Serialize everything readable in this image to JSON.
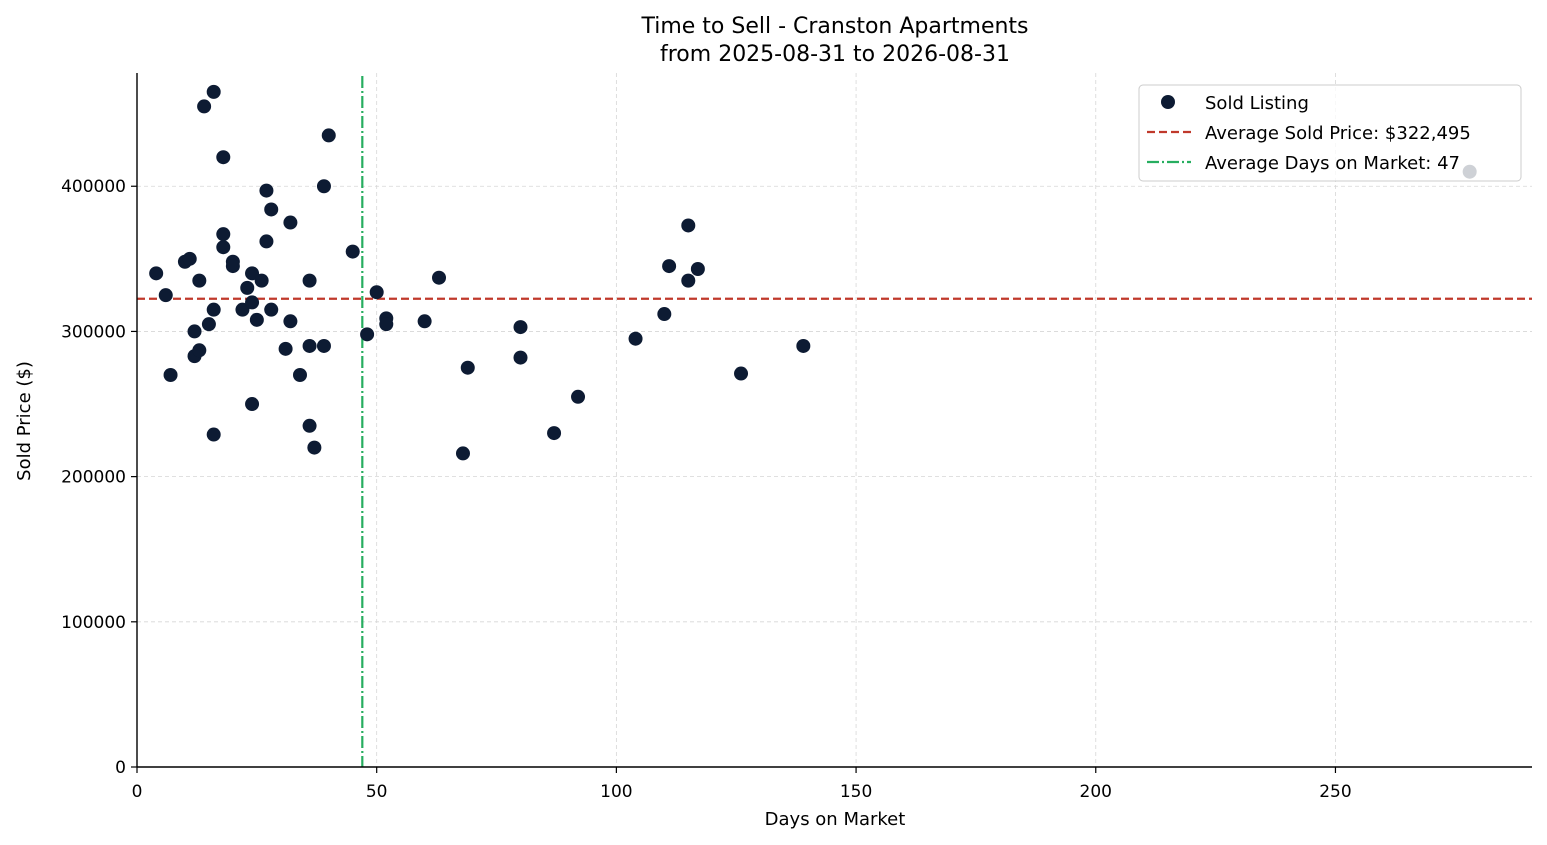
{
  "chart_data": {
    "type": "scatter",
    "title": "Time to Sell - Cranston Apartments",
    "subtitle": "from 2025-08-31 to 2026-08-31",
    "xlabel": "Days on Market",
    "ylabel": "Sold Price ($)",
    "xlim": [
      0,
      291
    ],
    "ylim": [
      0,
      478000
    ],
    "xticks": [
      0,
      50,
      100,
      150,
      200,
      250
    ],
    "yticks": [
      0,
      100000,
      200000,
      300000,
      400000
    ],
    "grid": true,
    "legend_position": "top-right",
    "colors": {
      "points": "#0d1b33",
      "avg_price_line": "#c0392b",
      "avg_days_line": "#27ae60"
    },
    "legend": [
      {
        "label": "Sold Listing",
        "kind": "marker"
      },
      {
        "label": "Average Sold Price: $322,495",
        "kind": "dashed"
      },
      {
        "label": "Average Days on Market: 47",
        "kind": "dashdot"
      }
    ],
    "avg_sold_price": 322495,
    "avg_days_on_market": 47,
    "series": [
      {
        "name": "Sold Listing",
        "points": [
          [
            4,
            340000
          ],
          [
            6,
            325000
          ],
          [
            7,
            270000
          ],
          [
            10,
            348000
          ],
          [
            11,
            350000
          ],
          [
            12,
            300000
          ],
          [
            12,
            283000
          ],
          [
            13,
            335000
          ],
          [
            13,
            287000
          ],
          [
            14,
            455000
          ],
          [
            15,
            305000
          ],
          [
            16,
            465000
          ],
          [
            16,
            315000
          ],
          [
            16,
            229000
          ],
          [
            18,
            420000
          ],
          [
            18,
            367000
          ],
          [
            18,
            358000
          ],
          [
            20,
            348000
          ],
          [
            20,
            345000
          ],
          [
            22,
            315000
          ],
          [
            23,
            330000
          ],
          [
            24,
            340000
          ],
          [
            24,
            320000
          ],
          [
            24,
            250000
          ],
          [
            25,
            308000
          ],
          [
            26,
            335000
          ],
          [
            27,
            397000
          ],
          [
            27,
            362000
          ],
          [
            28,
            384000
          ],
          [
            28,
            315000
          ],
          [
            31,
            288000
          ],
          [
            32,
            375000
          ],
          [
            32,
            307000
          ],
          [
            34,
            270000
          ],
          [
            36,
            335000
          ],
          [
            36,
            290000
          ],
          [
            36,
            235000
          ],
          [
            37,
            220000
          ],
          [
            39,
            400000
          ],
          [
            39,
            290000
          ],
          [
            40,
            435000
          ],
          [
            45,
            355000
          ],
          [
            48,
            298000
          ],
          [
            50,
            327000
          ],
          [
            52,
            309000
          ],
          [
            52,
            305000
          ],
          [
            60,
            307000
          ],
          [
            63,
            337000
          ],
          [
            68,
            216000
          ],
          [
            69,
            275000
          ],
          [
            80,
            303000
          ],
          [
            80,
            282000
          ],
          [
            87,
            230000
          ],
          [
            92,
            255000
          ],
          [
            104,
            295000
          ],
          [
            110,
            312000
          ],
          [
            111,
            345000
          ],
          [
            115,
            373000
          ],
          [
            115,
            335000
          ],
          [
            117,
            343000
          ],
          [
            126,
            271000
          ],
          [
            139,
            290000
          ],
          [
            278,
            410000
          ]
        ]
      }
    ]
  }
}
